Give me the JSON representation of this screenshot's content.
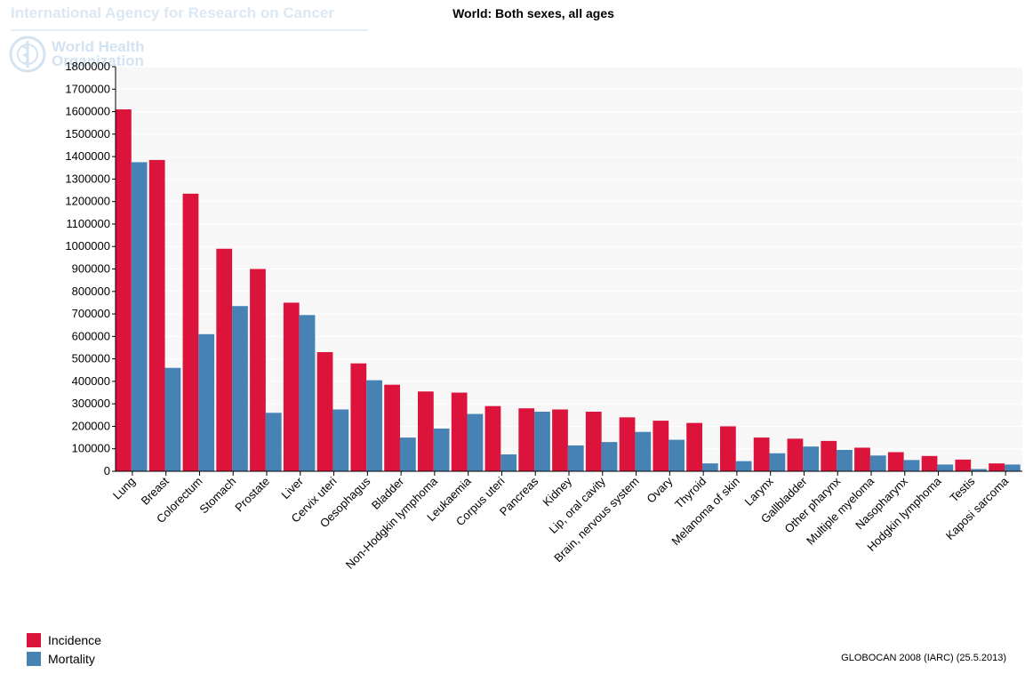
{
  "watermark": {
    "agency": "International Agency for Research on Cancer",
    "who_line1": "World Health",
    "who_line2": "Organization",
    "logo_icon": "who-emblem-icon"
  },
  "source": "GLOBOCAN 2008 (IARC) (25.5.2013)",
  "colors": {
    "incidence": "#dc143c",
    "mortality": "#4682b4"
  },
  "chart_data": {
    "type": "bar",
    "title": "World: Both sexes, all ages",
    "xlabel": "",
    "ylabel": "",
    "ylim": [
      0,
      1800000
    ],
    "yticks": [
      0,
      100000,
      200000,
      300000,
      400000,
      500000,
      600000,
      700000,
      800000,
      900000,
      1000000,
      1100000,
      1200000,
      1300000,
      1400000,
      1500000,
      1600000,
      1700000,
      1800000
    ],
    "grid": true,
    "legend_position": "bottom-left",
    "categories": [
      "Lung",
      "Breast",
      "Colorectum",
      "Stomach",
      "Prostate",
      "Liver",
      "Cervix uteri",
      "Oesophagus",
      "Bladder",
      "Non-Hodgkin lymphoma",
      "Leukaemia",
      "Corpus uteri",
      "Pancreas",
      "Kidney",
      "Lip, oral cavity",
      "Brain, nervous system",
      "Ovary",
      "Thyroid",
      "Melanoma of skin",
      "Larynx",
      "Gallbladder",
      "Other pharynx",
      "Multiple myeloma",
      "Nasopharynx",
      "Hodgkin lymphoma",
      "Testis",
      "Kaposi sarcoma"
    ],
    "series": [
      {
        "name": "Incidence",
        "color": "#dc143c",
        "values": [
          1610000,
          1385000,
          1235000,
          990000,
          900000,
          750000,
          530000,
          480000,
          385000,
          355000,
          350000,
          290000,
          280000,
          275000,
          265000,
          240000,
          225000,
          215000,
          200000,
          150000,
          145000,
          135000,
          105000,
          85000,
          68000,
          52000,
          35000
        ]
      },
      {
        "name": "Mortality",
        "color": "#4682b4",
        "values": [
          1375000,
          460000,
          610000,
          735000,
          260000,
          695000,
          275000,
          405000,
          150000,
          190000,
          255000,
          75000,
          265000,
          115000,
          130000,
          175000,
          140000,
          35000,
          45000,
          80000,
          110000,
          95000,
          70000,
          50000,
          30000,
          10000,
          30000
        ]
      }
    ]
  }
}
